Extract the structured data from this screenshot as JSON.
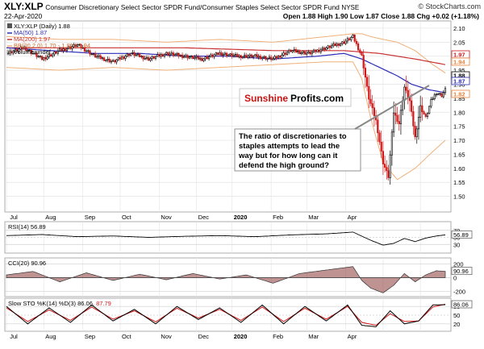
{
  "header": {
    "symbol": "XLY:XLP",
    "description": "Consumer Discretionary Select Sector SPDR Fund/Consumer Staples Select Sector SPDR Fund",
    "exchange": "NYSE",
    "watermark": "© StockCharts.com",
    "date": "22-Apr-2020",
    "ohlc": "Open 1.88  High 1.90  Low 1.87  Close 1.88  Chg +0.02 (+1.18%)"
  },
  "legend": {
    "price": "XLY:XLP (Daily) 1.88",
    "ma50": "MA(50) 1.87",
    "ma200": "MA(200) 1.97",
    "bb": "BB(20,2.0) 1.70 - 1.82 - 1.94",
    "volume": "Volume undef"
  },
  "brand": {
    "part1": "Sunshine",
    "part2": "Profits.com"
  },
  "annotation": {
    "lines": [
      "The ratio of discretionaries to",
      "staples attempts to lead the",
      "way but for how long can it",
      "defend the high ground?"
    ]
  },
  "colors": {
    "ma50": "#2b2bb8",
    "ma200": "#c83232",
    "bb": "#f0b07a",
    "up_candle": "#000000",
    "down_candle": "#d01818",
    "rsi_line": "#000000",
    "cci_fill": "#8c3a3a",
    "sto_k": "#000000",
    "sto_d": "#d01818",
    "brand_red": "#cc1111",
    "axis_box_red": "#d01818",
    "axis_box_blue": "#2b2bb8",
    "axis_box_orange": "#e8833a"
  },
  "chart_data": [
    {
      "type": "candlestick",
      "title": "XLY:XLP (Daily)",
      "x_ticks": [
        "Jul",
        "Aug",
        "Sep",
        "Oct",
        "Nov",
        "Dec",
        "2020",
        "Feb",
        "Mar",
        "Apr"
      ],
      "y_ticks": [
        1.5,
        1.55,
        1.6,
        1.65,
        1.7,
        1.75,
        1.8,
        1.85,
        1.9,
        1.95,
        2.0,
        2.05,
        2.1
      ],
      "ylim": [
        1.45,
        2.12
      ],
      "last_values": {
        "close": 1.88,
        "ma50": 1.87,
        "ma200": 1.97,
        "bb_upper": 1.94,
        "bb_mid": 1.82,
        "bb_lower": 1.7
      },
      "axis_boxes": [
        "1.97",
        "1.94",
        "1.88",
        "1.87",
        "1.82"
      ],
      "series": [
        {
          "name": "MA(50)",
          "x": [
            0,
            25,
            50,
            75,
            100,
            125,
            150,
            175,
            190,
            200,
            210,
            220,
            228,
            238,
            247
          ],
          "y": [
            2.03,
            2.02,
            2.01,
            2.01,
            2.0,
            2.0,
            1.99,
            2.0,
            2.01,
            1.99,
            1.96,
            1.93,
            1.9,
            1.88,
            1.87
          ]
        },
        {
          "name": "MA(200)",
          "x": [
            0,
            50,
            100,
            150,
            190,
            210,
            230,
            247
          ],
          "y": [
            2.03,
            2.03,
            2.03,
            2.02,
            2.02,
            2.01,
            1.99,
            1.97
          ]
        },
        {
          "name": "BB upper",
          "x": [
            0,
            30,
            60,
            90,
            120,
            150,
            180,
            195,
            200,
            205,
            212,
            220,
            230,
            240,
            247
          ],
          "y": [
            2.07,
            2.06,
            2.06,
            2.05,
            2.06,
            2.05,
            2.07,
            2.08,
            2.08,
            2.07,
            2.06,
            2.05,
            2.02,
            1.97,
            1.94
          ]
        },
        {
          "name": "BB lower",
          "x": [
            0,
            30,
            60,
            90,
            120,
            150,
            180,
            195,
            200,
            205,
            212,
            220,
            230,
            240,
            247
          ],
          "y": [
            1.96,
            1.95,
            1.96,
            1.95,
            1.96,
            1.97,
            1.98,
            1.98,
            1.92,
            1.78,
            1.62,
            1.56,
            1.6,
            1.66,
            1.7
          ]
        },
        {
          "name": "Close",
          "x": [
            0,
            10,
            20,
            30,
            40,
            50,
            60,
            70,
            80,
            90,
            100,
            110,
            120,
            130,
            140,
            150,
            160,
            170,
            180,
            190,
            195,
            200,
            204,
            208,
            212,
            215,
            218,
            221,
            224,
            227,
            230,
            233,
            236,
            239,
            242,
            245,
            247
          ],
          "y": [
            2.01,
            2.03,
            1.99,
            2.02,
            2.04,
            2.0,
            1.98,
            2.01,
            1.99,
            2.01,
            2.0,
            1.99,
            2.01,
            2.0,
            2.0,
            1.99,
            2.02,
            2.01,
            2.03,
            2.05,
            2.07,
            2.0,
            1.85,
            1.77,
            1.62,
            1.57,
            1.8,
            1.76,
            1.89,
            1.84,
            1.71,
            1.82,
            1.78,
            1.84,
            1.87,
            1.86,
            1.88
          ]
        }
      ]
    },
    {
      "type": "line",
      "title": "RSI(14) 56.89",
      "y_ticks": [
        30,
        50,
        70
      ],
      "ylim": [
        10,
        90
      ],
      "series": [
        {
          "name": "RSI(14)",
          "x": [
            0,
            20,
            40,
            60,
            80,
            100,
            120,
            140,
            160,
            180,
            195,
            205,
            212,
            218,
            224,
            230,
            236,
            242,
            247
          ],
          "y": [
            55,
            58,
            52,
            54,
            50,
            53,
            55,
            52,
            57,
            60,
            65,
            42,
            28,
            33,
            47,
            38,
            48,
            54,
            56.89
          ]
        }
      ]
    },
    {
      "type": "area",
      "title": "CCI(20) 90.96",
      "y_ticks": [
        -200,
        0,
        200
      ],
      "ylim": [
        -250,
        250
      ],
      "series": [
        {
          "name": "CCI(20)",
          "x": [
            0,
            15,
            30,
            45,
            60,
            75,
            90,
            105,
            120,
            135,
            150,
            165,
            180,
            195,
            200,
            205,
            212,
            218,
            224,
            230,
            236,
            242,
            247
          ],
          "y": [
            40,
            90,
            -60,
            70,
            -40,
            50,
            -30,
            60,
            -20,
            40,
            -80,
            60,
            110,
            160,
            -40,
            -150,
            -220,
            -110,
            60,
            -60,
            40,
            100,
            90.96
          ]
        }
      ]
    },
    {
      "type": "line",
      "title": "Slow STO %K(14) %D(3) 86.06, 87.79",
      "y_ticks": [
        20,
        50,
        80
      ],
      "ylim": [
        0,
        100
      ],
      "series": [
        {
          "name": "%K(14)",
          "x": [
            0,
            12,
            24,
            36,
            48,
            60,
            72,
            84,
            96,
            108,
            120,
            132,
            144,
            156,
            168,
            180,
            192,
            200,
            208,
            216,
            224,
            232,
            240,
            247
          ],
          "y": [
            80,
            20,
            75,
            25,
            85,
            30,
            70,
            20,
            80,
            35,
            75,
            25,
            85,
            20,
            80,
            30,
            85,
            15,
            10,
            65,
            20,
            30,
            85,
            86.06
          ]
        },
        {
          "name": "%D(3)",
          "x": [
            0,
            12,
            24,
            36,
            48,
            60,
            72,
            84,
            96,
            108,
            120,
            132,
            144,
            156,
            168,
            180,
            192,
            200,
            208,
            216,
            224,
            232,
            240,
            247
          ],
          "y": [
            75,
            28,
            68,
            32,
            78,
            36,
            65,
            27,
            74,
            40,
            70,
            32,
            78,
            28,
            74,
            36,
            80,
            25,
            15,
            55,
            28,
            30,
            78,
            87.79
          ]
        }
      ]
    }
  ]
}
